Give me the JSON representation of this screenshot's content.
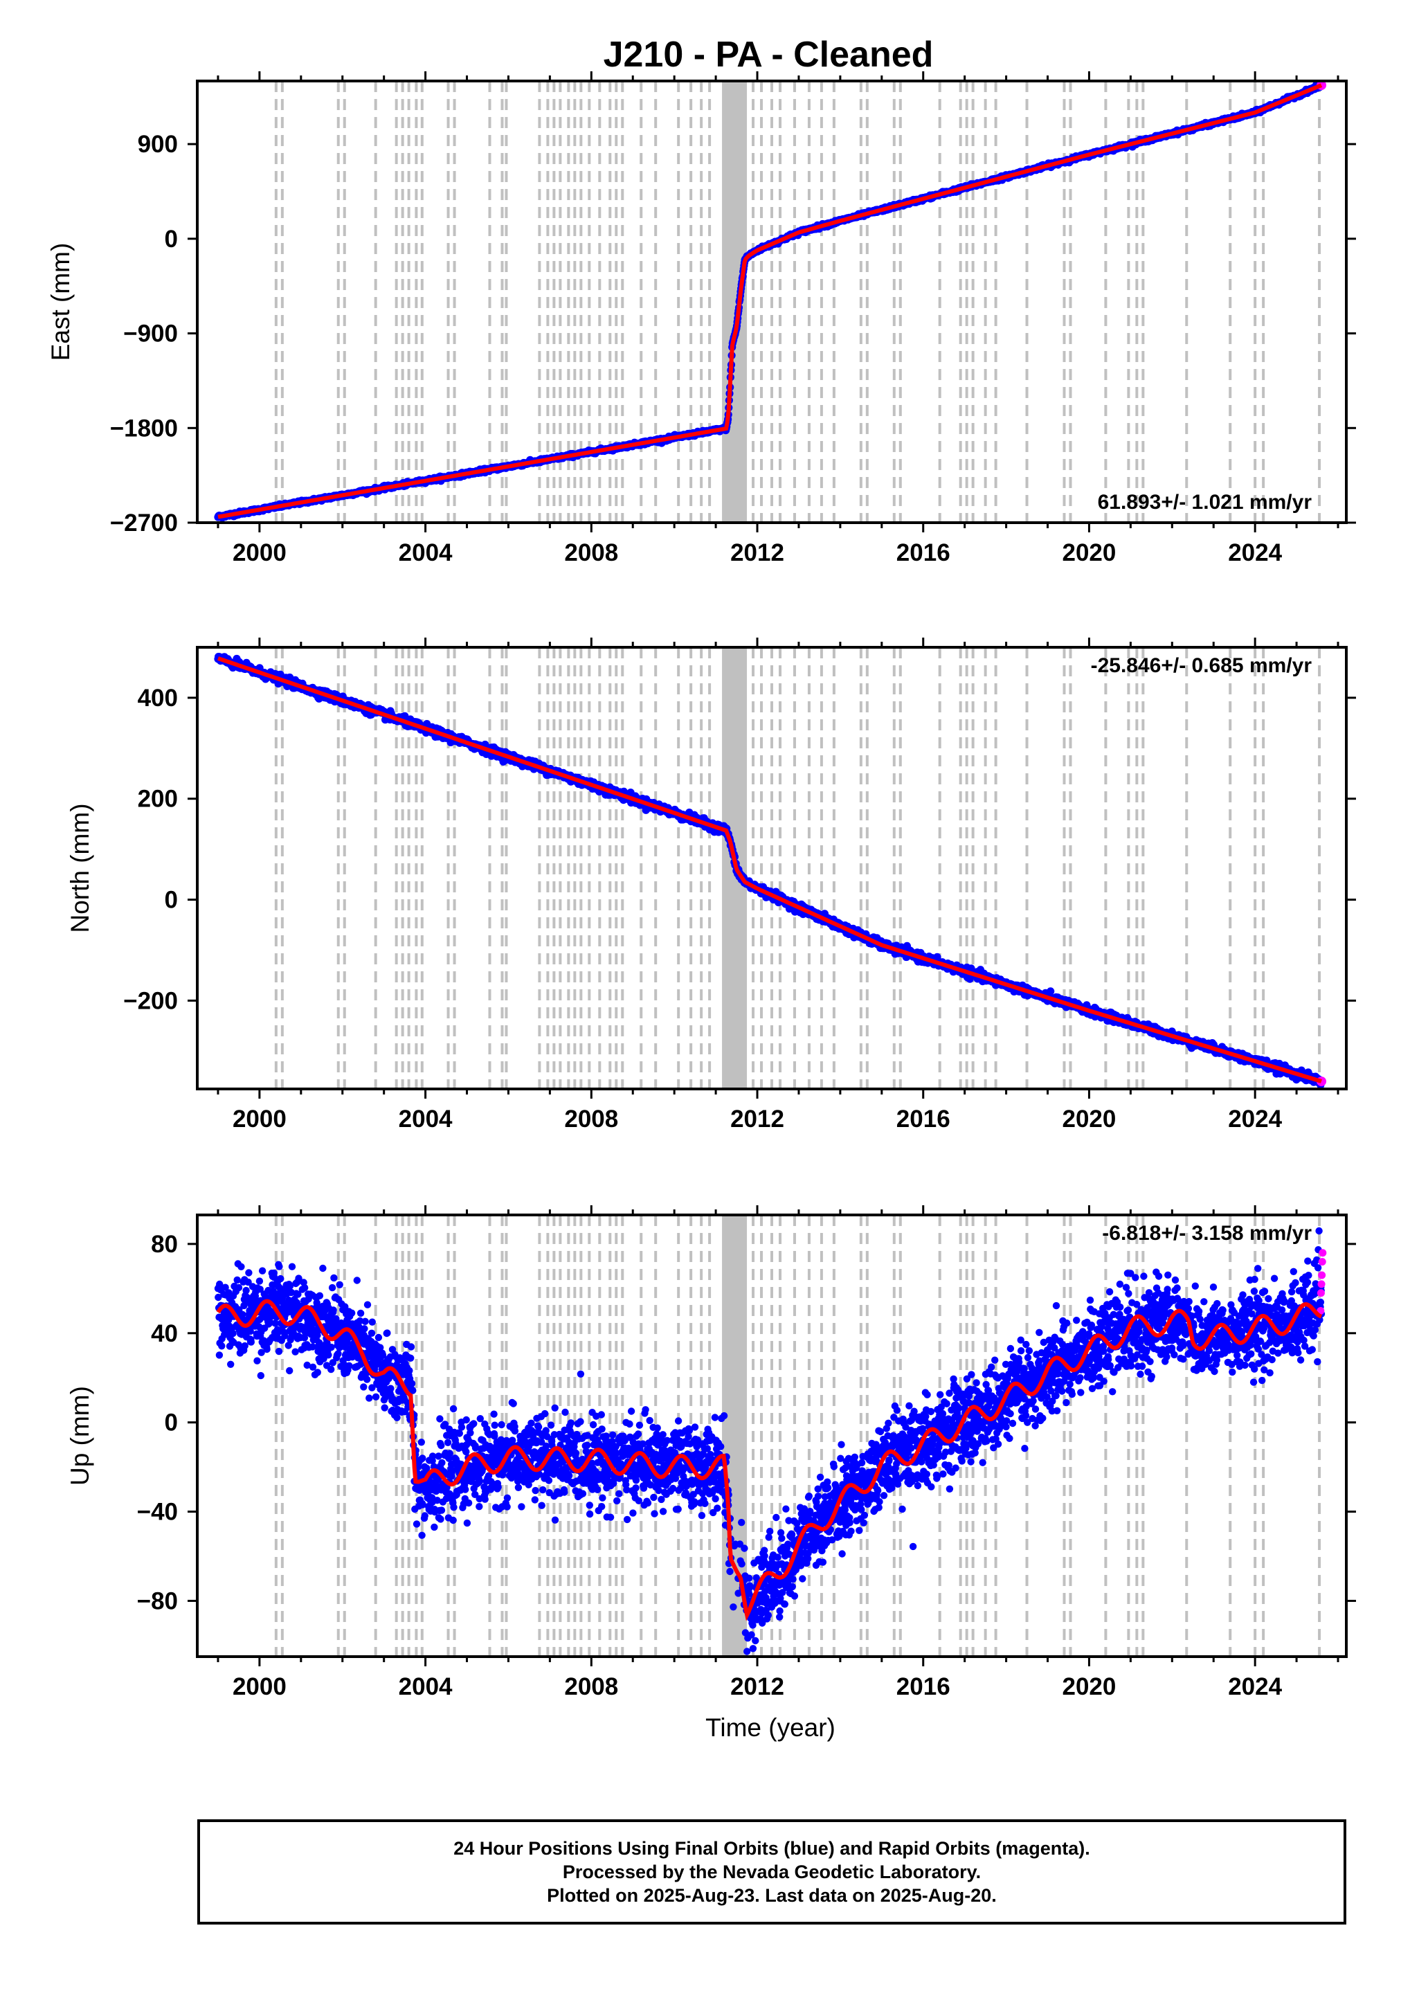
{
  "title": "J210  - PA - Cleaned",
  "x_axis_label": "Time (year)",
  "colors": {
    "final_orbit_points": "#0000ff",
    "rapid_orbit_points": "#ff00ff",
    "smoothed_trend": "#ff0000",
    "event_lines": "#c0c0c0",
    "frame": "#000000"
  },
  "notes": [
    "24 Hour Positions Using Final Orbits (blue) and Rapid Orbits (magenta).",
    "Processed by the Nevada Geodetic Laboratory.",
    "Plotted on 2025-Aug-23. Last data on 2025-Aug-20."
  ],
  "chart_data": [
    {
      "type": "scatter",
      "component": "East",
      "ylabel": "East (mm)",
      "xlim": [
        1998.5,
        2026.2
      ],
      "ylim": [
        -2700,
        1500
      ],
      "yticks": [
        -2700,
        -1800,
        -900,
        0,
        900
      ],
      "xticks": [
        2000,
        2004,
        2008,
        2012,
        2016,
        2020,
        2024
      ],
      "rate_label": "61.893+/- 1.021 mm/yr",
      "rate_label_position": "bottom-right",
      "grid": false,
      "trend": [
        [
          1999.0,
          -2645
        ],
        [
          2011.25,
          -1805
        ],
        [
          2011.3,
          -1700
        ],
        [
          2011.35,
          -1350
        ],
        [
          2011.4,
          -1000
        ],
        [
          2011.5,
          -850
        ],
        [
          2011.6,
          -500
        ],
        [
          2011.7,
          -200
        ],
        [
          2011.8,
          -160
        ],
        [
          2012.0,
          -110
        ],
        [
          2013.0,
          60
        ],
        [
          2014.0,
          170
        ],
        [
          2016.0,
          380
        ],
        [
          2018.0,
          590
        ],
        [
          2020.0,
          800
        ],
        [
          2022.0,
          1000
        ],
        [
          2024.0,
          1200
        ],
        [
          2025.6,
          1460
        ]
      ],
      "noise_mm": 8
    },
    {
      "type": "scatter",
      "component": "North",
      "ylabel": "North (mm)",
      "xlim": [
        1998.5,
        2026.2
      ],
      "ylim": [
        -375,
        500
      ],
      "yticks": [
        -200,
        0,
        200,
        400
      ],
      "xticks": [
        2000,
        2004,
        2008,
        2012,
        2016,
        2020,
        2024
      ],
      "rate_label": "-25.846+/- 0.685 mm/yr",
      "rate_label_position": "top-right",
      "grid": false,
      "trend": [
        [
          1999.0,
          478
        ],
        [
          2011.25,
          137
        ],
        [
          2011.35,
          115
        ],
        [
          2011.5,
          60
        ],
        [
          2011.7,
          35
        ],
        [
          2012.0,
          22
        ],
        [
          2015.0,
          -90
        ],
        [
          2020.0,
          -220
        ],
        [
          2025.6,
          -360
        ]
      ],
      "noise_mm": 4
    },
    {
      "type": "scatter",
      "component": "Up",
      "ylabel": "Up (mm)",
      "xlim": [
        1998.5,
        2026.2
      ],
      "ylim": [
        -105,
        93
      ],
      "yticks": [
        -80,
        -40,
        0,
        40,
        80
      ],
      "xticks": [
        2000,
        2004,
        2008,
        2012,
        2016,
        2020,
        2024
      ],
      "rate_label": "-6.818+/- 3.158 mm/yr",
      "rate_label_position": "top-right",
      "grid": false,
      "trend": [
        [
          1999.0,
          47
        ],
        [
          2000.5,
          50
        ],
        [
          2001.5,
          45
        ],
        [
          2002.5,
          32
        ],
        [
          2003.0,
          20
        ],
        [
          2003.65,
          17
        ],
        [
          2003.75,
          -22
        ],
        [
          2004.0,
          -28
        ],
        [
          2005.0,
          -20
        ],
        [
          2006.0,
          -16
        ],
        [
          2008.0,
          -17
        ],
        [
          2010.0,
          -20
        ],
        [
          2011.2,
          -20
        ],
        [
          2011.3,
          -40
        ],
        [
          2011.35,
          -63
        ],
        [
          2011.6,
          -65
        ],
        [
          2011.75,
          -82
        ],
        [
          2012.5,
          -67
        ],
        [
          2013.5,
          -45
        ],
        [
          2015.0,
          -20
        ],
        [
          2016.0,
          -10
        ],
        [
          2017.0,
          0
        ],
        [
          2018.0,
          10
        ],
        [
          2019.0,
          22
        ],
        [
          2020.0,
          32
        ],
        [
          2021.0,
          42
        ],
        [
          2022.0,
          45
        ],
        [
          2022.4,
          45
        ],
        [
          2022.5,
          38
        ],
        [
          2023.0,
          38
        ],
        [
          2024.0,
          42
        ],
        [
          2025.0,
          46
        ],
        [
          2025.6,
          52
        ]
      ],
      "noise_mm": 9,
      "rapid_orbit_points": [
        [
          2025.58,
          50
        ],
        [
          2025.59,
          58
        ],
        [
          2025.6,
          62
        ],
        [
          2025.61,
          66
        ],
        [
          2025.62,
          72
        ],
        [
          2025.63,
          76
        ]
      ]
    }
  ],
  "event_lines": [
    2000.4,
    2000.55,
    2001.9,
    2002.05,
    2002.8,
    2003.3,
    2003.45,
    2003.6,
    2003.78,
    2003.92,
    2004.55,
    2004.7,
    2005.55,
    2005.85,
    2005.95,
    2006.75,
    2006.95,
    2007.1,
    2007.25,
    2007.45,
    2007.6,
    2007.75,
    2007.95,
    2008.2,
    2008.45,
    2008.6,
    2008.75,
    2009.2,
    2009.55,
    2010.1,
    2010.4,
    2010.65,
    2010.85,
    2011.9,
    2012.1,
    2012.35,
    2012.55,
    2012.9,
    2013.25,
    2013.55,
    2013.85,
    2014.5,
    2014.65,
    2015.3,
    2015.45,
    2016.4,
    2016.9,
    2017.05,
    2017.2,
    2017.5,
    2017.75,
    2018.5,
    2019.4,
    2019.55,
    2020.4,
    2020.95,
    2021.15,
    2021.3,
    2022.35,
    2023.4,
    2024.0,
    2024.2,
    2025.55
  ],
  "data_gap_band": [
    2011.15,
    2011.75
  ]
}
